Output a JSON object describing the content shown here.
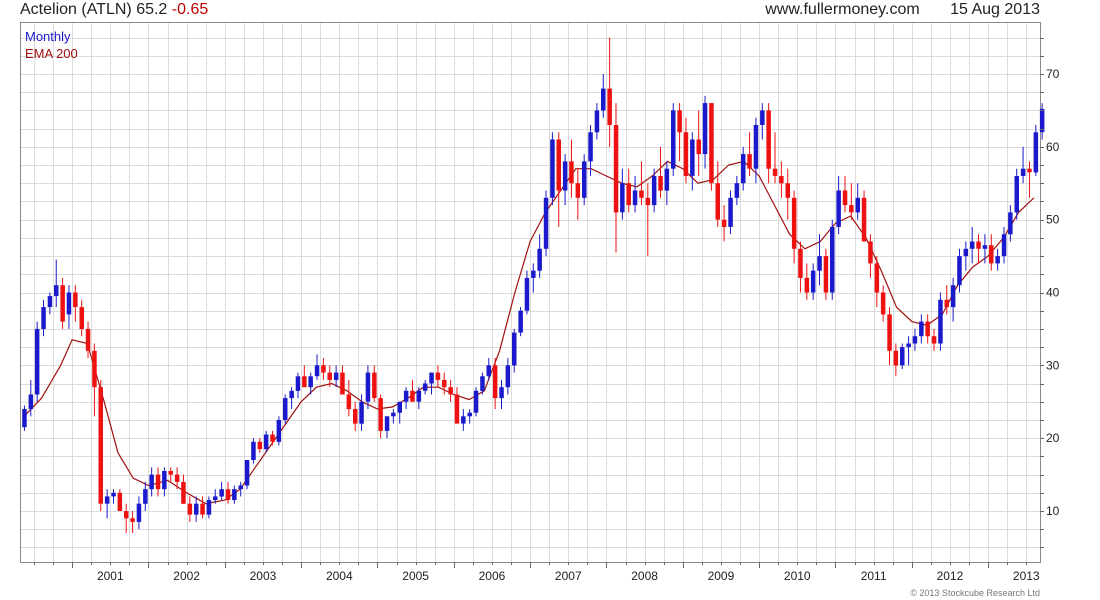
{
  "header": {
    "instrument": "Actelion (ATLN)",
    "last": "65.2",
    "change": "-0.65",
    "site": "www.fullermoney.com",
    "date": "15 Aug 2013"
  },
  "legend": {
    "period": "Monthly",
    "ema": "EMA 200"
  },
  "copyright": "© 2013 Stockcube Research Ltd",
  "colors": {
    "up": "#1a1acc",
    "down": "#ee1111",
    "ema": "#a01010",
    "grid": "#dcdcdc"
  },
  "chart_data": {
    "type": "candlestick",
    "y_ticks": [
      10,
      20,
      30,
      40,
      50,
      60,
      70
    ],
    "x_labels": [
      "2001",
      "2002",
      "2003",
      "2004",
      "2005",
      "2006",
      "2007",
      "2008",
      "2009",
      "2010",
      "2011",
      "2012",
      "2013"
    ],
    "ylim": [
      3,
      77
    ],
    "xlim": [
      2000.33,
      2013.68
    ],
    "grid": true,
    "y_axis_side": "right",
    "start_period": "2000-05",
    "candles": [
      [
        21.5,
        24.5,
        21,
        24
      ],
      [
        24,
        28,
        23,
        26
      ],
      [
        26,
        36,
        25,
        35
      ],
      [
        35,
        39,
        34,
        38
      ],
      [
        38,
        40,
        37,
        39.5
      ],
      [
        39.5,
        44.5,
        38,
        41
      ],
      [
        41,
        42,
        35,
        36
      ],
      [
        37,
        41,
        35,
        40
      ],
      [
        40,
        41,
        36,
        38
      ],
      [
        38,
        39,
        34,
        35
      ],
      [
        35,
        36,
        31,
        32
      ],
      [
        32,
        33,
        23,
        27
      ],
      [
        27,
        28,
        10,
        11
      ],
      [
        11,
        13,
        9,
        12
      ],
      [
        12,
        13,
        11,
        12.5
      ],
      [
        12.5,
        13,
        10,
        10
      ],
      [
        10,
        11,
        7,
        9
      ],
      [
        9,
        10,
        7,
        8.5
      ],
      [
        8.5,
        12,
        7.5,
        11
      ],
      [
        11,
        14,
        10,
        13
      ],
      [
        13,
        16,
        12,
        15
      ],
      [
        15,
        16,
        12,
        13
      ],
      [
        13,
        16,
        12,
        15.5
      ],
      [
        15.5,
        16,
        14,
        15
      ],
      [
        15,
        16,
        13,
        14
      ],
      [
        14,
        15,
        11,
        11
      ],
      [
        11,
        12,
        8.5,
        9.5
      ],
      [
        9.5,
        12,
        8.5,
        11
      ],
      [
        11,
        12,
        9,
        9.5
      ],
      [
        9.5,
        12,
        9,
        11.5
      ],
      [
        11.5,
        13,
        11,
        12
      ],
      [
        12,
        14,
        11.5,
        13
      ],
      [
        13,
        14,
        11,
        11.5
      ],
      [
        11.5,
        13.5,
        11,
        13
      ],
      [
        13,
        14,
        12,
        13.5
      ],
      [
        13.5,
        17,
        13,
        17
      ],
      [
        17,
        20,
        16.5,
        19.5
      ],
      [
        19.5,
        20,
        18,
        18.5
      ],
      [
        18.5,
        21,
        18,
        20.5
      ],
      [
        20.5,
        21,
        19,
        19.5
      ],
      [
        19.5,
        23,
        19,
        22.5
      ],
      [
        22.5,
        26,
        22,
        25.5
      ],
      [
        25.5,
        27,
        24,
        26.5
      ],
      [
        26.5,
        29,
        25.5,
        28.5
      ],
      [
        28.5,
        30,
        27,
        27
      ],
      [
        27,
        29,
        26,
        28.5
      ],
      [
        28.5,
        31.5,
        28,
        30
      ],
      [
        30,
        31,
        28,
        29
      ],
      [
        29,
        30,
        27,
        28
      ],
      [
        28,
        30,
        27,
        29
      ],
      [
        29,
        30,
        26,
        26
      ],
      [
        26,
        28,
        23,
        24
      ],
      [
        24,
        25,
        21,
        22
      ],
      [
        22,
        26,
        21,
        25
      ],
      [
        25,
        30,
        24,
        29
      ],
      [
        29,
        30,
        25,
        25.5
      ],
      [
        25.5,
        26,
        20,
        21
      ],
      [
        21,
        23,
        20,
        23
      ],
      [
        23,
        24,
        22,
        23.5
      ],
      [
        23.5,
        25,
        22,
        25
      ],
      [
        25,
        27,
        24,
        26.5
      ],
      [
        26.5,
        28,
        25,
        25
      ],
      [
        25,
        27,
        24,
        26.5
      ],
      [
        26.5,
        28,
        26,
        27.5
      ],
      [
        27.5,
        29,
        26,
        29
      ],
      [
        29,
        30,
        27,
        28
      ],
      [
        28,
        29,
        26,
        27
      ],
      [
        27,
        28,
        25,
        26
      ],
      [
        26,
        27,
        22,
        22
      ],
      [
        22,
        24,
        21,
        23
      ],
      [
        23,
        24,
        22,
        23.5
      ],
      [
        23.5,
        27,
        23,
        26.5
      ],
      [
        26.5,
        29,
        26,
        28.5
      ],
      [
        28.5,
        31,
        28,
        30
      ],
      [
        30,
        31,
        24,
        25.5
      ],
      [
        25.5,
        28,
        24,
        27
      ],
      [
        27,
        31,
        26,
        30
      ],
      [
        30,
        35,
        29,
        34.5
      ],
      [
        34.5,
        38,
        34,
        37.5
      ],
      [
        37.5,
        43,
        37,
        42
      ],
      [
        42,
        44,
        40,
        43
      ],
      [
        43,
        48,
        42,
        46
      ],
      [
        46,
        54,
        45,
        53
      ],
      [
        53,
        62,
        52,
        61
      ],
      [
        61,
        62,
        49,
        54
      ],
      [
        54,
        59,
        52,
        58
      ],
      [
        58,
        61,
        53,
        55
      ],
      [
        55,
        57,
        50,
        53
      ],
      [
        53,
        59,
        52,
        58
      ],
      [
        58,
        63,
        56,
        62
      ],
      [
        62,
        66,
        61,
        65
      ],
      [
        65,
        70,
        64,
        68
      ],
      [
        68,
        75,
        60,
        63
      ],
      [
        63,
        66,
        45.5,
        51
      ],
      [
        51,
        57,
        50,
        55
      ],
      [
        55,
        57,
        51,
        52
      ],
      [
        52,
        56,
        51,
        54
      ],
      [
        54,
        58,
        52,
        53
      ],
      [
        53,
        55,
        45,
        52
      ],
      [
        52,
        57,
        51,
        56
      ],
      [
        56,
        60,
        53,
        54
      ],
      [
        54,
        58,
        52,
        57
      ],
      [
        57,
        66,
        56,
        65
      ],
      [
        65,
        66,
        58,
        62
      ],
      [
        62,
        64,
        55,
        56
      ],
      [
        56,
        62,
        54,
        61
      ],
      [
        61,
        65,
        56,
        59
      ],
      [
        59,
        67,
        57,
        66
      ],
      [
        66,
        66,
        54,
        55
      ],
      [
        55,
        58,
        49,
        50
      ],
      [
        50,
        52,
        47,
        49
      ],
      [
        49,
        54,
        48,
        53
      ],
      [
        53,
        56,
        52,
        55
      ],
      [
        55,
        60,
        54,
        59
      ],
      [
        59,
        62,
        56,
        57
      ],
      [
        57,
        64,
        55,
        63
      ],
      [
        63,
        66,
        61,
        65
      ],
      [
        65,
        66,
        55,
        57
      ],
      [
        57,
        62,
        55,
        56
      ],
      [
        56,
        58,
        53,
        55
      ],
      [
        55,
        57,
        50,
        53
      ],
      [
        53,
        54,
        44,
        46
      ],
      [
        46,
        47,
        40,
        42
      ],
      [
        42,
        44,
        39,
        40
      ],
      [
        40,
        44,
        39,
        43
      ],
      [
        43,
        48,
        41,
        45
      ],
      [
        45,
        46,
        39,
        40
      ],
      [
        40,
        50,
        39,
        49
      ],
      [
        49,
        56,
        48,
        54
      ],
      [
        54,
        56,
        51,
        52
      ],
      [
        52,
        55,
        50,
        51
      ],
      [
        51,
        55,
        50,
        53
      ],
      [
        53,
        54,
        47,
        47
      ],
      [
        47,
        48,
        42,
        44
      ],
      [
        44,
        45,
        38,
        40
      ],
      [
        40,
        41,
        36,
        37
      ],
      [
        37,
        38,
        30,
        32
      ],
      [
        32,
        33,
        28.5,
        30
      ],
      [
        30,
        33,
        29.5,
        32.5
      ],
      [
        32.5,
        34,
        30,
        33
      ],
      [
        33,
        35,
        32,
        34
      ],
      [
        34,
        37,
        33,
        36
      ],
      [
        36,
        37,
        33,
        34
      ],
      [
        34,
        35,
        32,
        33
      ],
      [
        33,
        40,
        32,
        39
      ],
      [
        39,
        41,
        37,
        38
      ],
      [
        38,
        42,
        36,
        41
      ],
      [
        41,
        46,
        40,
        45
      ],
      [
        45,
        47,
        43,
        46
      ],
      [
        46,
        49,
        44,
        47
      ],
      [
        47,
        48,
        44,
        46
      ],
      [
        46,
        48,
        44,
        46.5
      ],
      [
        46.5,
        48,
        43,
        44
      ],
      [
        44,
        46,
        43,
        45
      ],
      [
        45,
        49,
        44,
        48
      ],
      [
        48,
        52,
        47,
        51
      ],
      [
        51,
        57,
        50,
        56
      ],
      [
        56,
        60,
        55,
        57
      ],
      [
        57,
        58,
        53,
        56.5
      ],
      [
        56.5,
        63,
        56,
        62
      ],
      [
        62,
        66,
        61,
        65.2
      ]
    ],
    "ema_200": [
      [
        2000.37,
        23
      ],
      [
        2000.6,
        25.5
      ],
      [
        2000.85,
        30
      ],
      [
        2001.0,
        33.5
      ],
      [
        2001.2,
        33
      ],
      [
        2001.42,
        25
      ],
      [
        2001.6,
        18
      ],
      [
        2001.8,
        14.5
      ],
      [
        2002.0,
        13.5
      ],
      [
        2002.25,
        14.2
      ],
      [
        2002.5,
        12.5
      ],
      [
        2002.75,
        11
      ],
      [
        2003.0,
        11.5
      ],
      [
        2003.2,
        13
      ],
      [
        2003.4,
        16
      ],
      [
        2003.6,
        19
      ],
      [
        2003.8,
        22
      ],
      [
        2004.0,
        25
      ],
      [
        2004.2,
        27
      ],
      [
        2004.4,
        27.5
      ],
      [
        2004.6,
        26.5
      ],
      [
        2004.8,
        25
      ],
      [
        2005.0,
        24
      ],
      [
        2005.2,
        24.3
      ],
      [
        2005.4,
        25.5
      ],
      [
        2005.6,
        27
      ],
      [
        2005.8,
        27
      ],
      [
        2006.0,
        26
      ],
      [
        2006.2,
        25.3
      ],
      [
        2006.4,
        26.5
      ],
      [
        2006.6,
        32
      ],
      [
        2006.8,
        40
      ],
      [
        2007.0,
        47
      ],
      [
        2007.2,
        51
      ],
      [
        2007.4,
        54
      ],
      [
        2007.6,
        57
      ],
      [
        2007.8,
        57
      ],
      [
        2008.0,
        56
      ],
      [
        2008.2,
        55
      ],
      [
        2008.4,
        54.5
      ],
      [
        2008.6,
        56
      ],
      [
        2008.8,
        58
      ],
      [
        2009.0,
        57
      ],
      [
        2009.2,
        55
      ],
      [
        2009.4,
        55.5
      ],
      [
        2009.6,
        57.5
      ],
      [
        2009.8,
        58
      ],
      [
        2010.0,
        56
      ],
      [
        2010.2,
        52
      ],
      [
        2010.4,
        48
      ],
      [
        2010.6,
        46
      ],
      [
        2010.8,
        47
      ],
      [
        2011.0,
        49.5
      ],
      [
        2011.2,
        50.5
      ],
      [
        2011.4,
        47.5
      ],
      [
        2011.6,
        43
      ],
      [
        2011.8,
        38
      ],
      [
        2012.0,
        36
      ],
      [
        2012.2,
        35.5
      ],
      [
        2012.4,
        37
      ],
      [
        2012.6,
        41
      ],
      [
        2012.8,
        43.5
      ],
      [
        2013.0,
        45
      ],
      [
        2013.2,
        47.5
      ],
      [
        2013.4,
        51
      ],
      [
        2013.6,
        53
      ]
    ]
  }
}
